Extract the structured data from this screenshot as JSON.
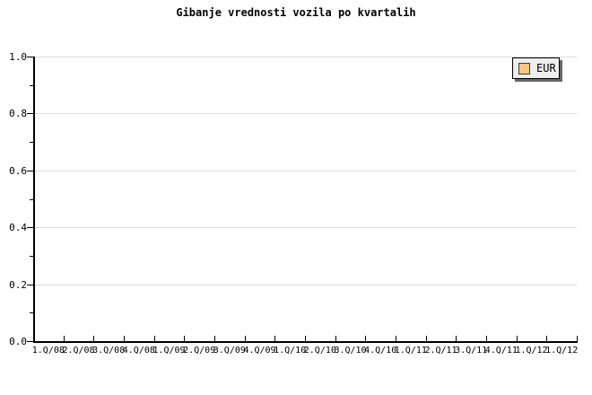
{
  "title": "Gibanje vrednosti vozila po kvartalih",
  "chart_data": {
    "type": "line",
    "title": "Gibanje vrednosti vozila po kvartalih",
    "categories": [
      "1.Q/08",
      "2.Q/08",
      "3.Q/08",
      "4.Q/08",
      "1.Q/09",
      "2.Q/09",
      "3.Q/09",
      "4.Q/09",
      "1.Q/10",
      "2.Q/10",
      "3.Q/10",
      "4.Q/10",
      "1.Q/11",
      "2.Q/11",
      "3.Q/11",
      "4.Q/11",
      "1.Q/12",
      "1.Q/12"
    ],
    "series": [
      {
        "name": "EUR",
        "color": "#F9C87E",
        "values": []
      }
    ],
    "xlabel": "",
    "ylabel": "",
    "ylim": [
      0.0,
      1.0
    ],
    "y_major_ticks": [
      0.0,
      0.2,
      0.4,
      0.6,
      0.8,
      1.0
    ],
    "y_minor_tick_step": 0.1,
    "grid": "horizontal major gridlines only",
    "legend_position": "top-right",
    "plot_empty": true
  },
  "legend": {
    "entries": [
      {
        "label": "EUR",
        "swatch_color": "#F9C87E"
      }
    ]
  },
  "colors": {
    "background": "#FFFFFF",
    "text": "#000000",
    "axis": "#000000",
    "gridline": "#DCDCDC",
    "legend_background": "#EEEEEE",
    "legend_border": "#000000",
    "legend_shadow": "#666666",
    "swatch_border": "#3A3A3A"
  }
}
